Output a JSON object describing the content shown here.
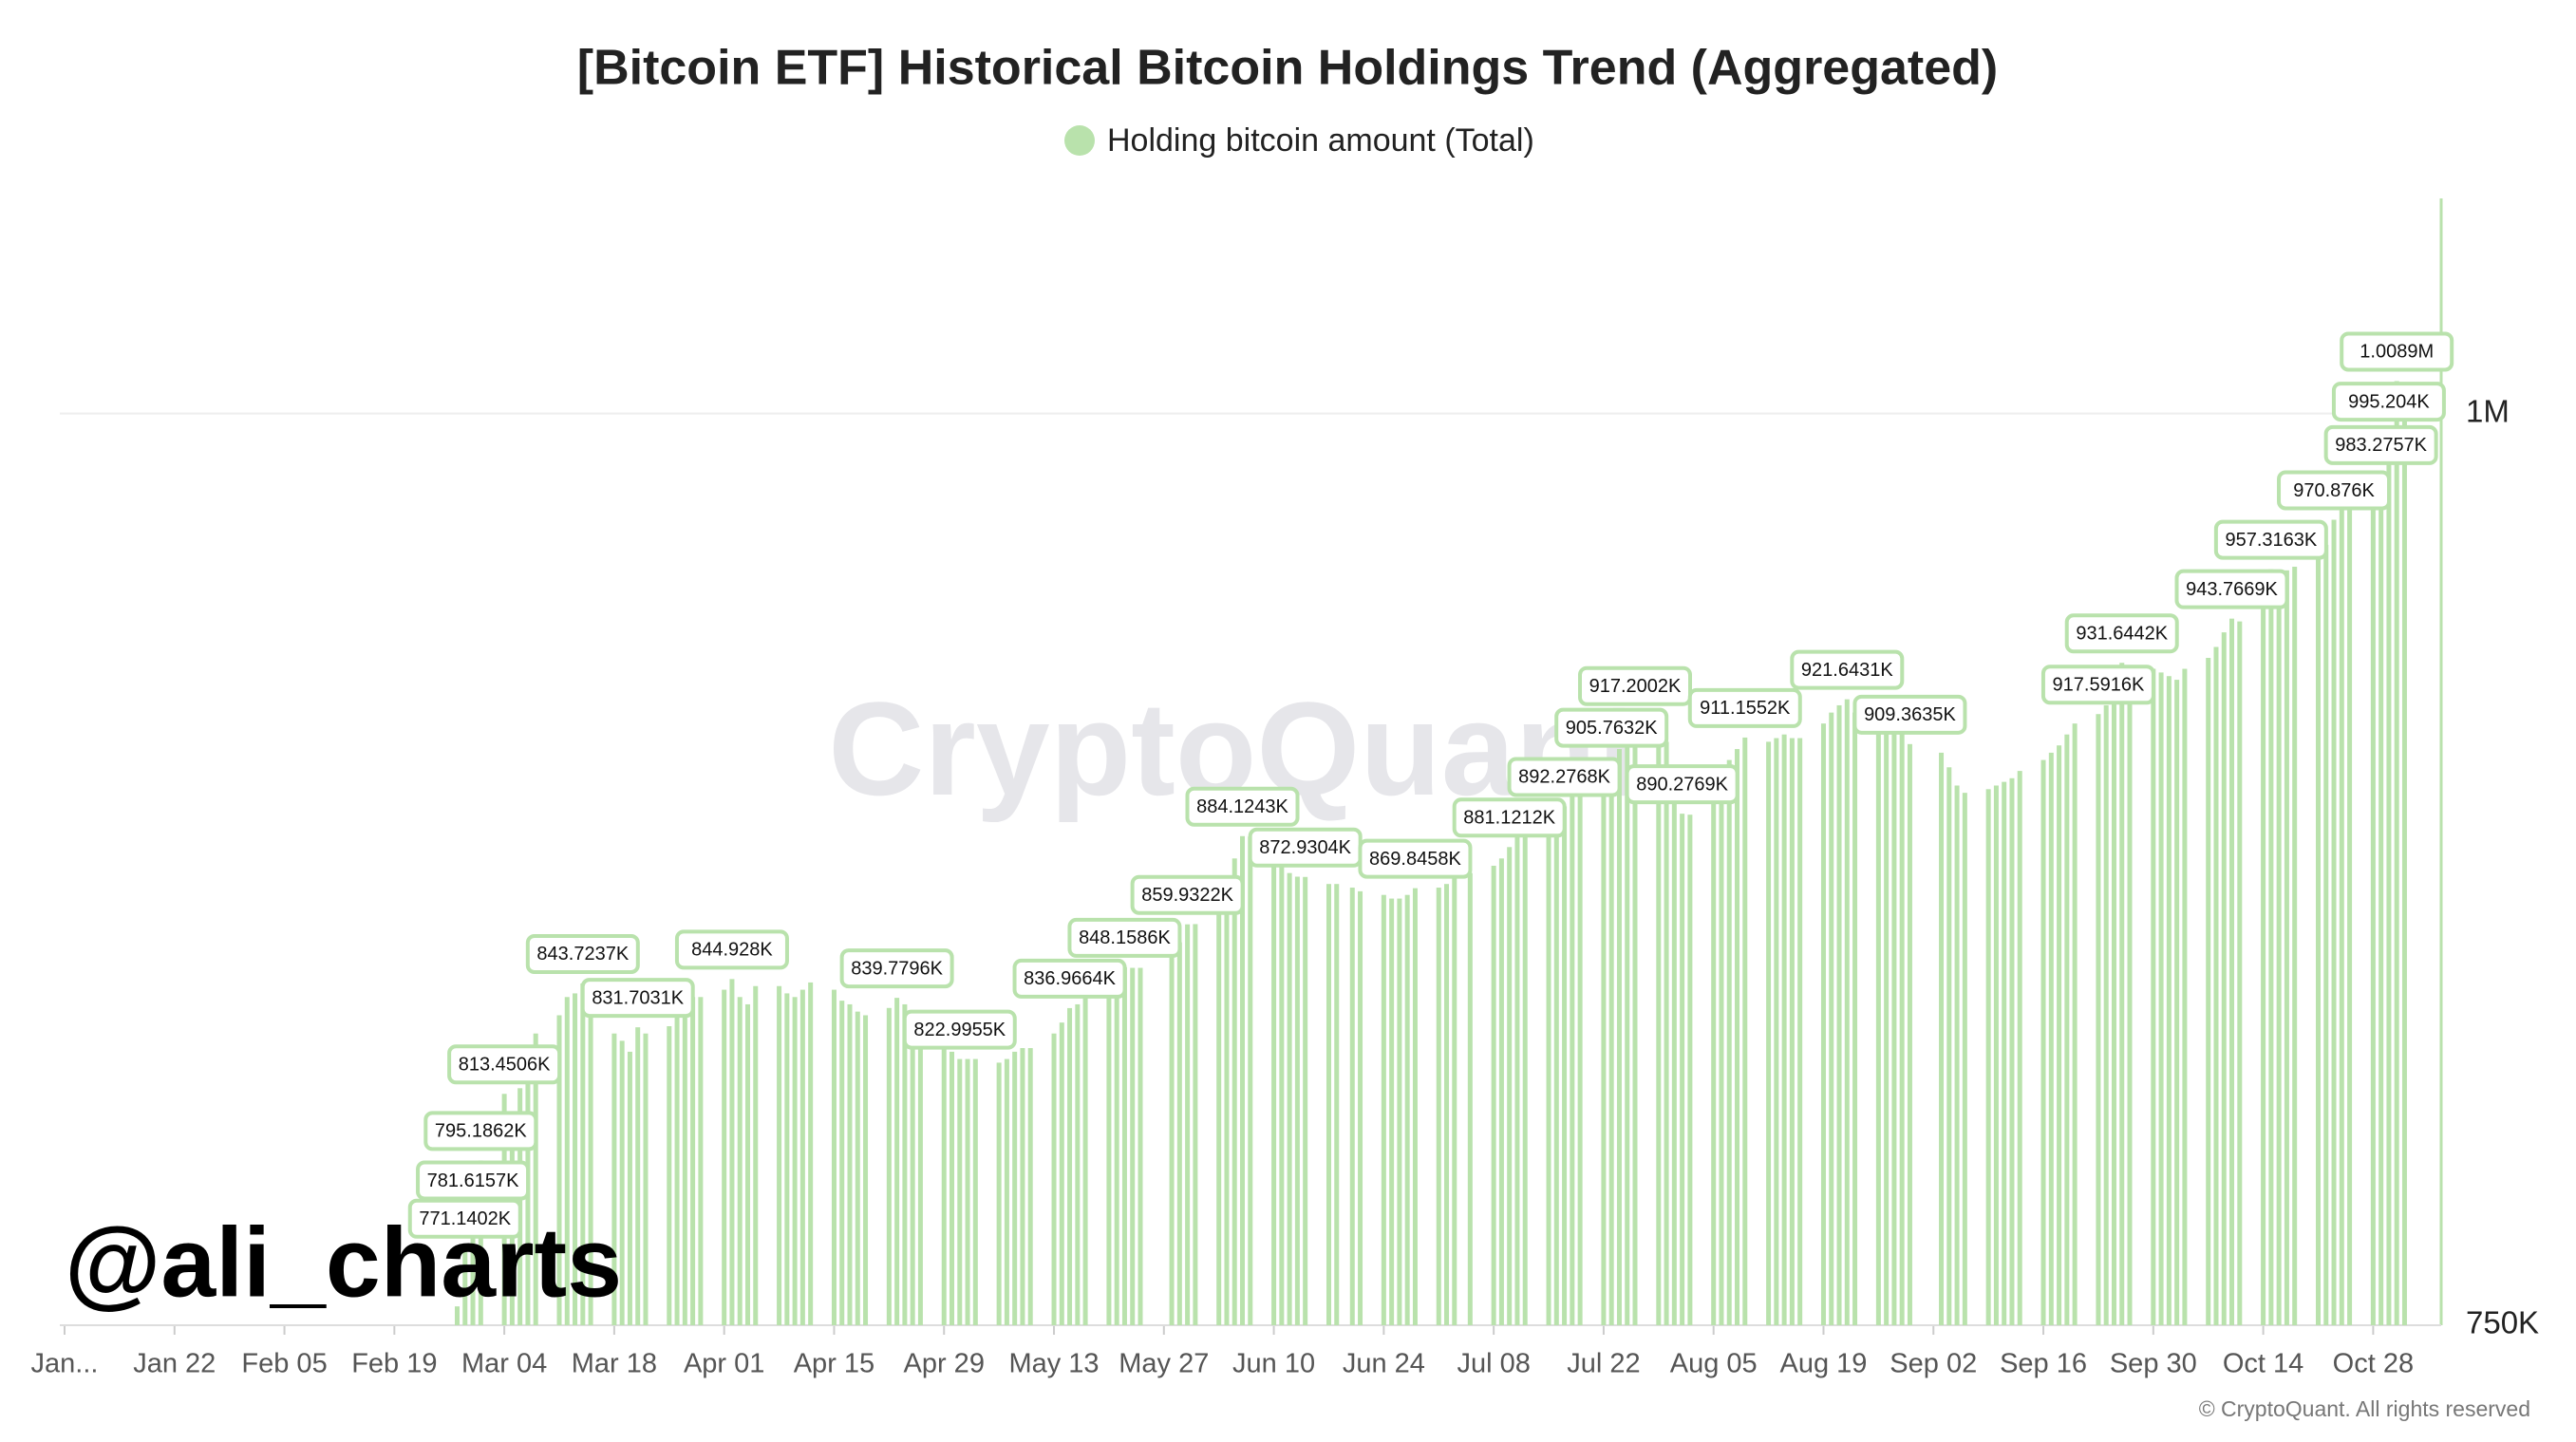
{
  "chart_data": {
    "type": "bar",
    "title": "[Bitcoin ETF] Historical Bitcoin Holdings Trend (Aggregated)",
    "watermark": "CryptoQuant",
    "annotation": "@ali_charts",
    "source": "© CryptoQuant. All rights reserved",
    "legend_position": "top",
    "grid": true,
    "ylim": [
      750000,
      1059000
    ],
    "yticks": [
      {
        "value": 750000,
        "label": "750K"
      },
      {
        "value": 1000000,
        "label": "1M"
      }
    ],
    "categories": [
      "Jan...",
      null,
      null,
      null,
      null,
      null,
      null,
      null,
      null,
      null,
      "Jan 22",
      null,
      null,
      null,
      null,
      null,
      null,
      null,
      null,
      null,
      "Feb 05",
      null,
      null,
      null,
      null,
      null,
      null,
      null,
      null,
      null,
      "Feb 19",
      null,
      null,
      null,
      null,
      null,
      null,
      null,
      null,
      null,
      "Mar 04",
      null,
      null,
      null,
      null,
      null,
      null,
      null,
      null,
      null,
      "Mar 18",
      null,
      null,
      null,
      null,
      null,
      null,
      null,
      null,
      null,
      "Apr 01",
      null,
      null,
      null,
      null,
      null,
      null,
      null,
      null,
      null,
      "Apr 15",
      null,
      null,
      null,
      null,
      null,
      null,
      null,
      null,
      null,
      "Apr 29",
      null,
      null,
      null,
      null,
      null,
      null,
      null,
      null,
      null,
      "May 13",
      null,
      null,
      null,
      null,
      null,
      null,
      null,
      null,
      null,
      "May 27",
      null,
      null,
      null,
      null,
      null,
      null,
      null,
      null,
      null,
      "Jun 10",
      null,
      null,
      null,
      null,
      null,
      null,
      null,
      null,
      null,
      "Jun 24",
      null,
      null,
      null,
      null,
      null,
      null,
      null,
      null,
      null,
      "Jul 08",
      null,
      null,
      null,
      null,
      null,
      null,
      null,
      null,
      null,
      "Jul 22",
      null,
      null,
      null,
      null,
      null,
      null,
      null,
      null,
      null,
      "Aug 05",
      null,
      null,
      null,
      null,
      null,
      null,
      null,
      null,
      null,
      "Aug 19",
      null,
      null,
      null,
      null,
      null,
      null,
      null,
      null,
      null,
      "Sep 02",
      null,
      null,
      null,
      null,
      null,
      null,
      null,
      null,
      null,
      "Sep 16",
      null,
      null,
      null,
      null,
      null,
      null,
      null,
      null,
      null,
      "Sep 30",
      null,
      null,
      null,
      null,
      null,
      null,
      null,
      null,
      null,
      "Oct 14",
      null,
      null,
      null,
      null,
      null,
      null,
      null,
      null,
      null,
      "Oct 28",
      null,
      null,
      null,
      null
    ],
    "series": [
      {
        "name": "Holding bitcoin amount (Total)",
        "color": "#b9e2ac",
        "values": [
          null,
          null,
          null,
          null,
          null,
          null,
          null,
          null,
          null,
          null,
          null,
          null,
          null,
          null,
          null,
          null,
          null,
          null,
          null,
          null,
          null,
          null,
          null,
          null,
          null,
          null,
          null,
          null,
          null,
          null,
          null,
          null,
          null,
          null,
          null,
          null,
          755170,
          771140.2,
          781615.7,
          795186.2,
          813450.6,
          805000,
          815000,
          825000,
          830000,
          835000,
          840000,
          841000,
          843723.7,
          835000,
          830000,
          828000,
          825000,
          831703.1,
          830000,
          832000,
          835000,
          838000,
          840000,
          840000,
          842000,
          844928,
          840000,
          838000,
          843000,
          843000,
          841000,
          840000,
          842000,
          844000,
          842000,
          839000,
          838000,
          836000,
          835000,
          837000,
          839779.6,
          838000,
          836000,
          835000,
          830000,
          825000,
          822995.5,
          823000,
          823000,
          822000,
          823000,
          825000,
          826000,
          826000,
          830000,
          833000,
          836966.4,
          838000,
          840000,
          843000,
          846000,
          848158.6,
          848000,
          848000,
          null,
          852000,
          855000,
          859932.2,
          860000,
          865000,
          872000,
          878000,
          884124.3,
          884000,
          880000,
          876000,
          874000,
          873000,
          872930.4,
          871000,
          871000,
          null,
          870000,
          869000,
          868000,
          867000,
          867000,
          868000,
          869845.8,
          870000,
          871000,
          873000,
          null,
          874000,
          876000,
          878000,
          881121.2,
          884000,
          886000,
          888000,
          890000,
          892276.8,
          896000,
          900000,
          903000,
          905763.2,
          908000,
          912000,
          917200.2,
          915000,
          910000,
          895000,
          890276.9,
          890000,
          895000,
          900000,
          905000,
          908000,
          911155.2,
          910000,
          911000,
          912000,
          911000,
          911000,
          915000,
          918000,
          920000,
          921643.1,
          918000,
          917000,
          916000,
          915000,
          913000,
          909363.5,
          null,
          907000,
          903000,
          898000,
          896000,
          897000,
          898000,
          899000,
          900000,
          902000,
          905000,
          907000,
          909000,
          912000,
          915000,
          917591.6,
          920000,
          925000,
          931644.2,
          930000,
          930000,
          929000,
          928000,
          927000,
          930000,
          933000,
          936000,
          940000,
          943766.9,
          943000,
          950000,
          957316.3,
          955000,
          957000,
          958000,
          960000,
          964000,
          970876,
          975000,
          975000,
          978000,
          983275.7,
          995204,
          1008900,
          1003000
        ],
        "value_labels": [
          null,
          null,
          null,
          null,
          null,
          null,
          null,
          null,
          null,
          null,
          null,
          null,
          null,
          null,
          null,
          null,
          null,
          null,
          null,
          null,
          null,
          null,
          null,
          null,
          null,
          null,
          null,
          null,
          null,
          null,
          null,
          null,
          null,
          null,
          null,
          null,
          null,
          "771.1402K",
          "781.6157K",
          "795.1862K",
          "813.4506K",
          null,
          null,
          null,
          null,
          null,
          null,
          null,
          "843.7237K",
          null,
          null,
          null,
          null,
          "831.7031K",
          null,
          null,
          null,
          null,
          null,
          null,
          null,
          "844.928K",
          null,
          null,
          null,
          null,
          null,
          null,
          null,
          null,
          null,
          null,
          null,
          null,
          null,
          null,
          "839.7796K",
          null,
          null,
          null,
          null,
          null,
          "822.9955K",
          null,
          null,
          null,
          null,
          null,
          null,
          null,
          null,
          null,
          "836.9664K",
          null,
          null,
          null,
          null,
          "848.1586K",
          null,
          null,
          null,
          null,
          null,
          "859.9322K",
          null,
          null,
          null,
          null,
          "884.1243K",
          null,
          null,
          null,
          null,
          null,
          "872.9304K",
          null,
          null,
          null,
          null,
          null,
          null,
          null,
          null,
          null,
          "869.8458K",
          null,
          null,
          null,
          null,
          null,
          null,
          null,
          "881.1212K",
          null,
          null,
          null,
          null,
          "892.2768K",
          null,
          null,
          null,
          "905.7632K",
          null,
          null,
          "917.2002K",
          null,
          null,
          null,
          "890.2769K",
          null,
          null,
          null,
          null,
          null,
          "911.1552K",
          null,
          null,
          null,
          null,
          null,
          null,
          null,
          null,
          "921.6431K",
          null,
          null,
          null,
          null,
          null,
          "909.3635K",
          null,
          null,
          null,
          null,
          null,
          null,
          null,
          null,
          null,
          null,
          null,
          null,
          null,
          null,
          null,
          "917.5916K",
          null,
          null,
          "931.6442K",
          null,
          null,
          null,
          null,
          null,
          null,
          null,
          null,
          null,
          "943.7669K",
          null,
          null,
          "957.3163K",
          null,
          null,
          null,
          null,
          null,
          "970.876K",
          null,
          null,
          null,
          "983.2757K",
          "995.204K",
          "1.0089M",
          null
        ]
      }
    ]
  }
}
